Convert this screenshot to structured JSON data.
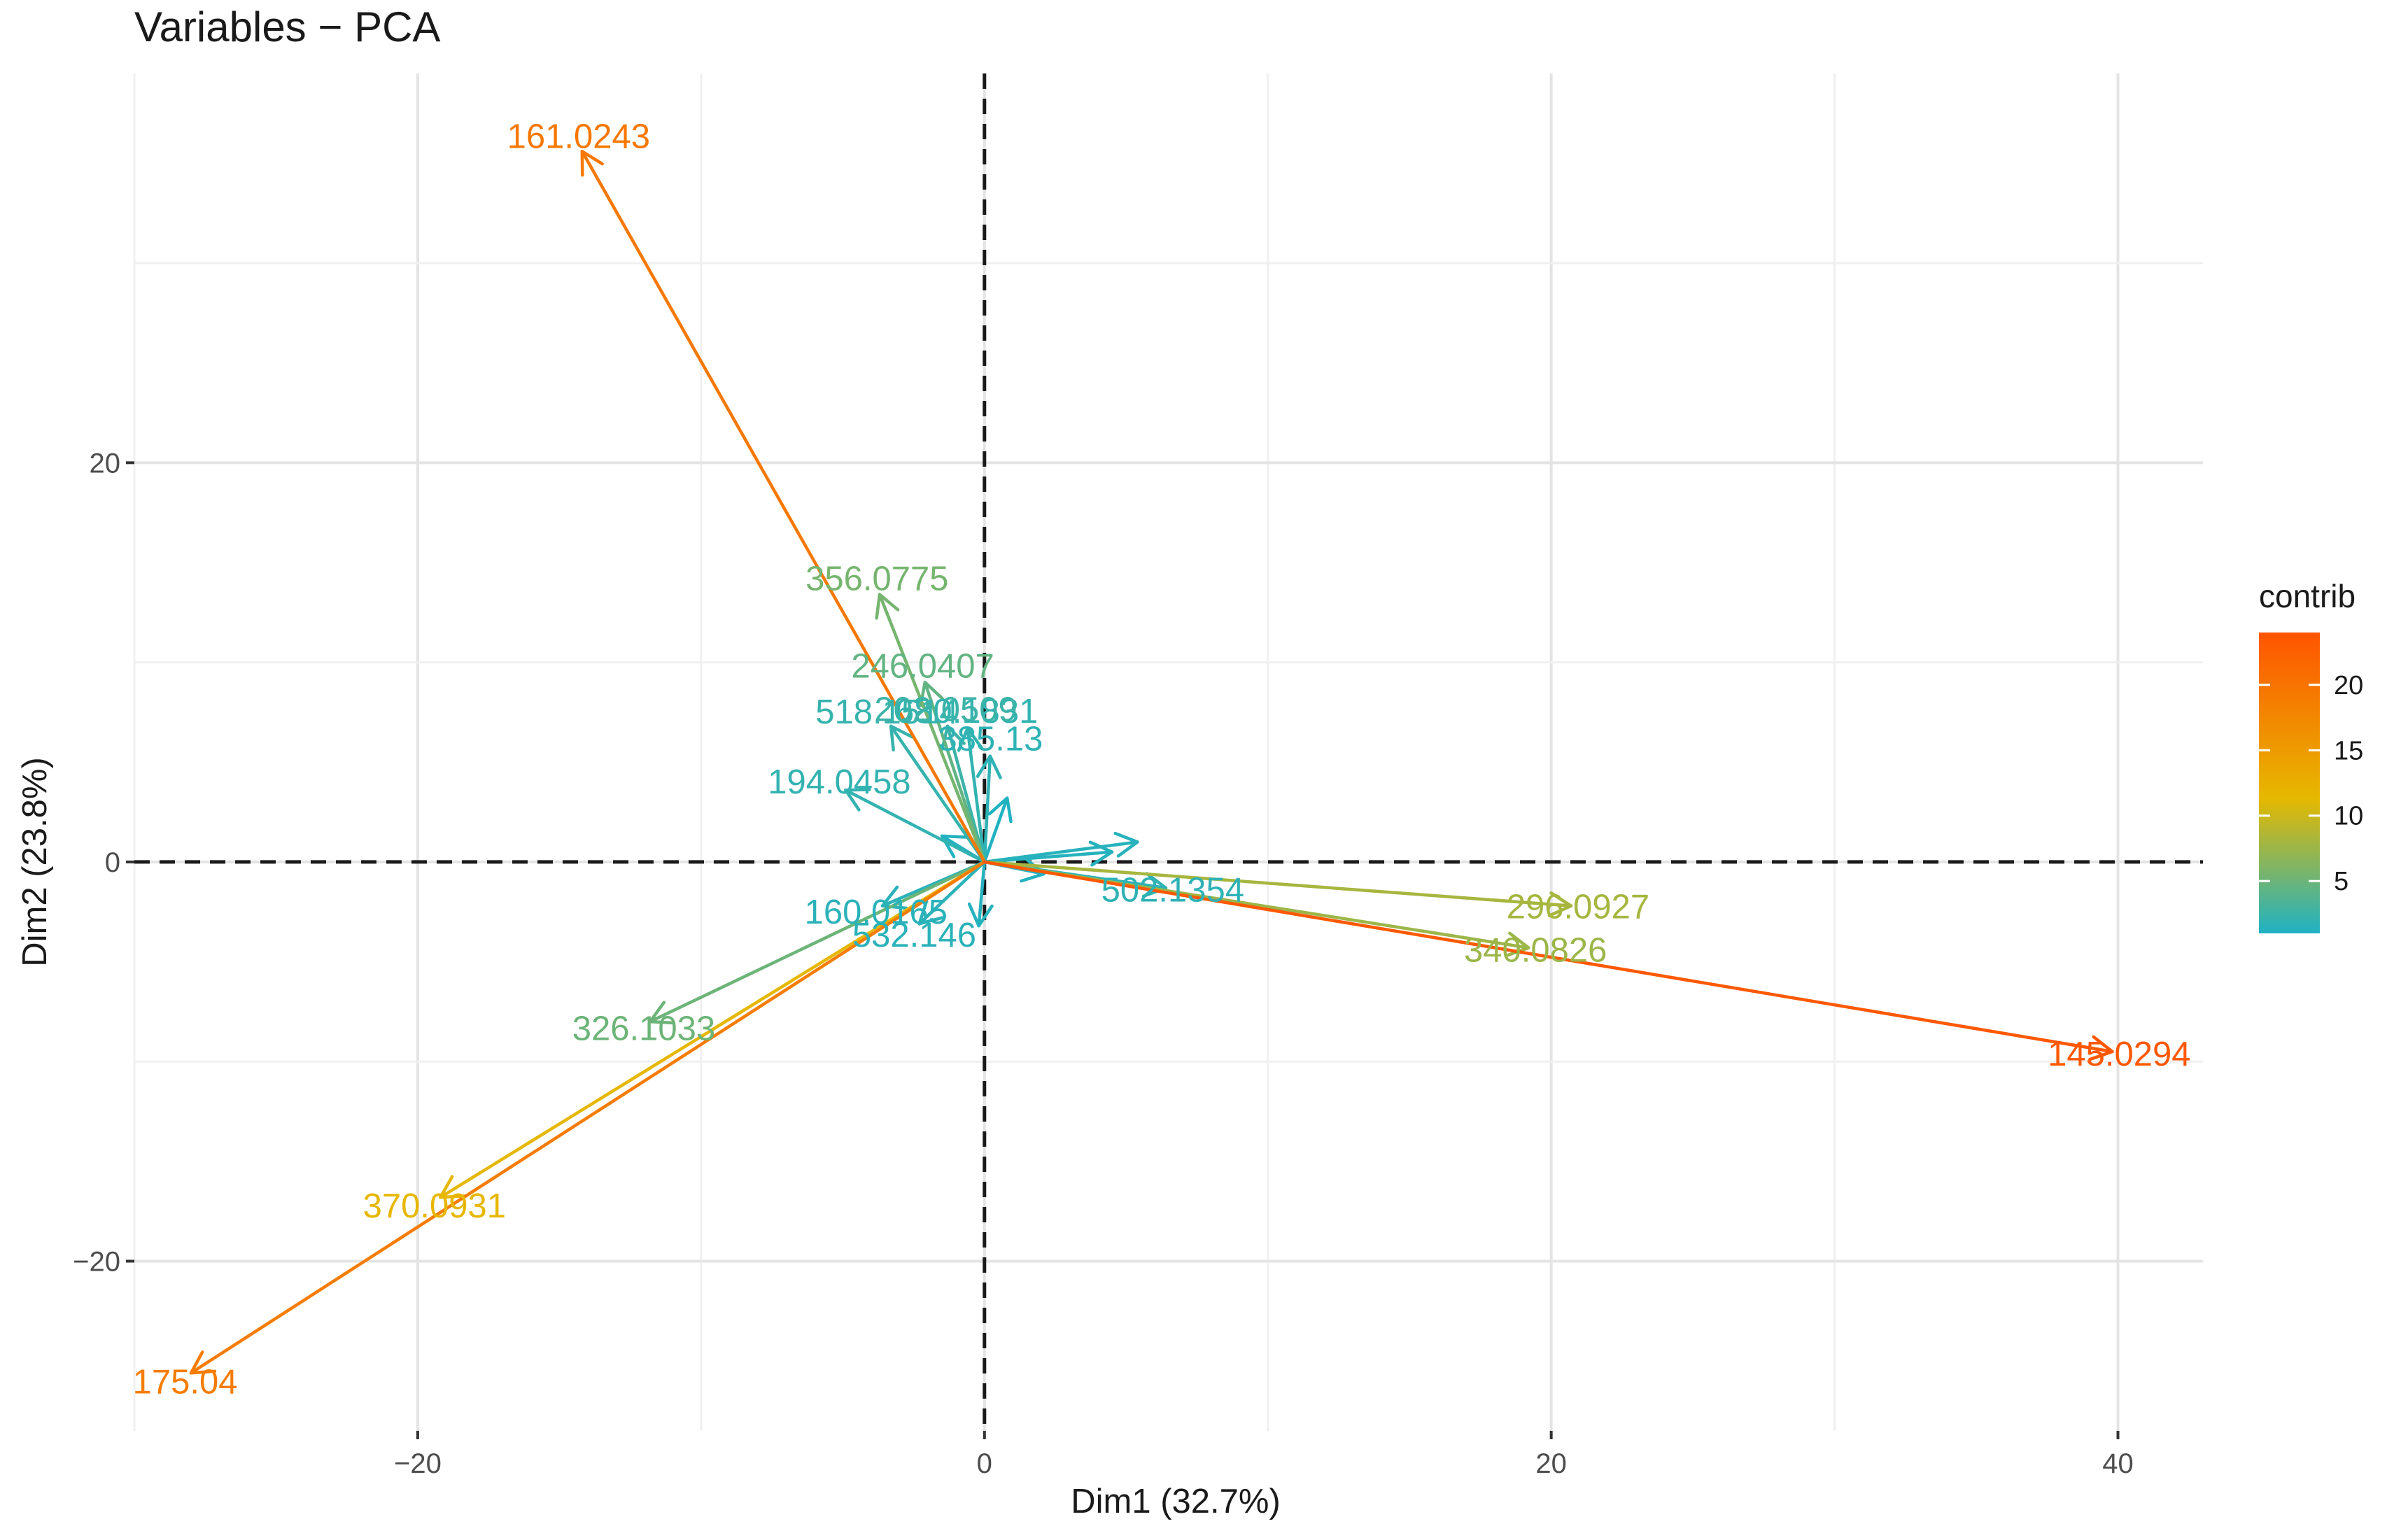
{
  "chart_data": {
    "type": "biplot-variables",
    "title": "Variables − PCA",
    "xlabel": "Dim1 (32.7%)",
    "ylabel": "Dim2 (23.8%)",
    "xlim": [
      -30,
      43
    ],
    "ylim": [
      -28.5,
      39.5
    ],
    "xticks": [
      -20,
      0,
      20,
      40
    ],
    "xtick_labels": [
      "−20",
      "0",
      "20",
      "40"
    ],
    "yticks": [
      -20,
      0,
      20
    ],
    "ytick_labels": [
      "−20",
      "0",
      "20"
    ],
    "grid": true,
    "reference_lines": [
      0,
      0
    ],
    "legend": {
      "title": "contrib",
      "position": "right",
      "range": [
        1,
        24
      ],
      "ticks": [
        5,
        10,
        15,
        20
      ],
      "tick_labels": [
        "5",
        "10",
        "15",
        "20"
      ],
      "colors": [
        "#1fb2c4",
        "#e6b800",
        "#ff5400"
      ]
    },
    "variables": [
      {
        "name": "161.0243",
        "x": -14.2,
        "y": 35.6,
        "contrib": 19.5
      },
      {
        "name": "145.0294",
        "x": 39.8,
        "y": -9.5,
        "contrib": 23.5
      },
      {
        "name": "175.04",
        "x": -28.0,
        "y": -25.6,
        "contrib": 19.0
      },
      {
        "name": "370.0931",
        "x": -19.2,
        "y": -16.8,
        "contrib": 11.5
      },
      {
        "name": "296.0927",
        "x": 20.7,
        "y": -2.2,
        "contrib": 8.0
      },
      {
        "name": "340.0826",
        "x": 19.2,
        "y": -4.3,
        "contrib": 7.5
      },
      {
        "name": "326.1033",
        "x": -11.8,
        "y": -8.0,
        "contrib": 5.0
      },
      {
        "name": "356.0775",
        "x": -3.7,
        "y": 13.4,
        "contrib": 5.5
      },
      {
        "name": "246.0407",
        "x": -2.1,
        "y": 9.0,
        "contrib": 4.5
      },
      {
        "name": "202.0509",
        "x": -1.3,
        "y": 6.8,
        "contrib": 2.5
      },
      {
        "name": "680.1831",
        "x": -0.6,
        "y": 6.7,
        "contrib": 2.0
      },
      {
        "name": "518.1514",
        "x": -3.3,
        "y": 6.8,
        "contrib": 2.2
      },
      {
        "name": "385.13",
        "x": 0.2,
        "y": 5.3,
        "contrib": 1.8
      },
      {
        "name": "194.0458",
        "x": -4.9,
        "y": 3.6,
        "contrib": 2.0
      },
      {
        "name": "502.1354",
        "x": 6.4,
        "y": -1.3,
        "contrib": 1.8
      },
      {
        "name": "532.146",
        "x": -2.3,
        "y": -3.1,
        "contrib": 1.6
      },
      {
        "name": "160.0165",
        "x": -3.6,
        "y": -2.2,
        "contrib": 1.6
      },
      {
        "name": "",
        "x": 5.4,
        "y": 1.0,
        "contrib": 1.4
      },
      {
        "name": "",
        "x": 4.5,
        "y": 0.5,
        "contrib": 1.3
      },
      {
        "name": "",
        "x": -0.2,
        "y": -3.2,
        "contrib": 1.3
      },
      {
        "name": "",
        "x": -1.5,
        "y": 1.3,
        "contrib": 1.2
      },
      {
        "name": "",
        "x": 2.1,
        "y": -0.6,
        "contrib": 1.2
      },
      {
        "name": "",
        "x": 0.8,
        "y": 3.2,
        "contrib": 1.1
      }
    ]
  }
}
